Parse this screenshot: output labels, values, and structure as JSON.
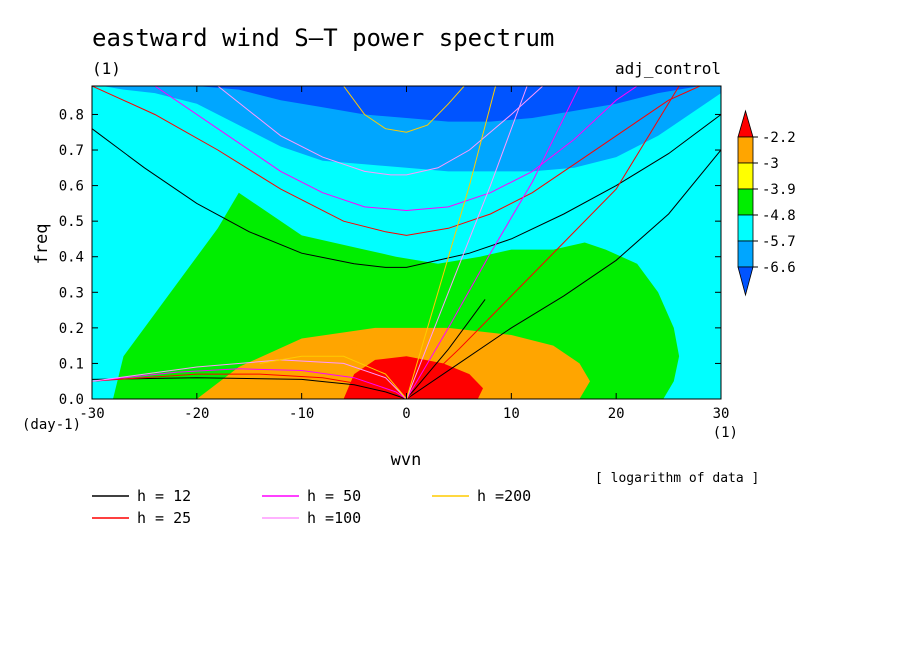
{
  "chart_data": {
    "type": "heatmap",
    "title": "eastward wind S–T power spectrum",
    "subtitle_left": "(1)",
    "subtitle_right": "adj_control",
    "xlabel": "wvn",
    "ylabel": "freq",
    "x_unit": "(1)",
    "y_unit": "(day-1)",
    "note": "[ logarithm of data ]",
    "xlim": [
      -30,
      30
    ],
    "ylim": [
      0,
      0.88
    ],
    "xticks": [
      -30,
      -20,
      -10,
      0,
      10,
      20,
      30
    ],
    "yticks": [
      0.0,
      0.1,
      0.2,
      0.3,
      0.4,
      0.5,
      0.6,
      0.7,
      0.8
    ],
    "ytick_labels": [
      "0.0",
      "0.1",
      "0.2",
      "0.3",
      "0.4",
      "0.5",
      "0.6",
      "0.7",
      "0.8"
    ],
    "grid": false,
    "colorbar": {
      "levels": [
        "-2.2",
        "-3",
        "-3.9",
        "-4.8",
        "-5.7",
        "-6.6"
      ],
      "colors": [
        "#fe0000",
        "#ffa500",
        "#ffff00",
        "#00ee00",
        "#00ffff",
        "#00a6ff",
        "#0054ff"
      ]
    },
    "fill_bands": [
      {
        "name": "> -3.9",
        "color": "#ffa500",
        "x": [
          -20.0,
          -16.0,
          -10.0,
          -3.0,
          4.0,
          10.0,
          14.0,
          16.5,
          17.5,
          16.5,
          12.0,
          0.0,
          -12.0,
          -20.0
        ],
        "y": [
          0.0,
          0.09,
          0.17,
          0.2,
          0.2,
          0.18,
          0.15,
          0.1,
          0.05,
          0.0,
          0.0,
          0.0,
          0.0,
          0.0
        ]
      },
      {
        "name": "> -3",
        "color": "#ffa500",
        "x": [
          -13.0,
          -9.0,
          -5.0,
          0.0,
          5.0,
          8.5,
          10.5,
          11.0,
          10.5,
          0.0,
          -13.0
        ],
        "y": [
          0.0,
          0.1,
          0.15,
          0.17,
          0.16,
          0.13,
          0.08,
          0.03,
          0.0,
          0.0,
          0.0
        ]
      },
      {
        "name": "> -2.2",
        "color": "#fe0000",
        "x": [
          -6.0,
          -5.0,
          -3.0,
          0.0,
          3.5,
          6.0,
          7.3,
          6.8,
          0.0,
          -6.0
        ],
        "y": [
          0.0,
          0.07,
          0.11,
          0.12,
          0.1,
          0.07,
          0.03,
          0.0,
          0.0,
          0.0
        ]
      },
      {
        "name": "> -4.8",
        "color": "#00ee00",
        "x": [
          -28.0,
          -27.0,
          -24.0,
          -21.0,
          -18.0,
          -16.0,
          -13.0,
          -10.0,
          -7.0,
          -4.0,
          -1.0,
          3.0,
          7.0,
          10.0,
          14.0,
          17.0,
          19.0,
          22.0,
          24.0,
          25.5,
          26.0,
          25.5,
          24.5,
          0.0,
          -28.0
        ],
        "y": [
          0.0,
          0.12,
          0.24,
          0.36,
          0.48,
          0.58,
          0.52,
          0.46,
          0.44,
          0.42,
          0.4,
          0.38,
          0.4,
          0.42,
          0.42,
          0.44,
          0.42,
          0.38,
          0.3,
          0.2,
          0.12,
          0.05,
          0.0,
          0.0,
          0.0
        ]
      },
      {
        "name": "> -6.6",
        "color": "#00a6ff",
        "x": [
          -30.0,
          -29.0,
          -27.0,
          -24.0,
          -20.0,
          -16.0,
          -12.0,
          -8.0,
          -4.0,
          0.0,
          4.0,
          8.0,
          12.0,
          16.0,
          20.0,
          24.0,
          27.0,
          29.0,
          30.0
        ],
        "y": [
          0.88,
          0.88,
          0.87,
          0.86,
          0.83,
          0.77,
          0.71,
          0.67,
          0.66,
          0.65,
          0.64,
          0.64,
          0.64,
          0.65,
          0.68,
          0.74,
          0.8,
          0.84,
          0.86
        ]
      },
      {
        "name": "> -5.7",
        "color": "#00ffff",
        "x": [
          -30.0,
          -27.0,
          -24.0,
          -20.0,
          -16.0,
          -12.0,
          -8.0,
          -4.0,
          0.0,
          4.0,
          8.0,
          12.0,
          16.0,
          20.0,
          24.0,
          27.0,
          29.0,
          30.0
        ],
        "y": [
          0.88,
          0.88,
          0.88,
          0.84,
          0.74,
          0.64,
          0.57,
          0.53,
          0.51,
          0.5,
          0.5,
          0.51,
          0.53,
          0.57,
          0.62,
          0.66,
          0.66,
          0.64
        ]
      }
    ],
    "series": [
      {
        "name": "h = 12",
        "color": "#000000",
        "curves": [
          {
            "x": [
              -30.0,
              -25.0,
              -20.0,
              -15.0,
              -10.0,
              -5.0,
              -2.0,
              0.0,
              3.0,
              6.0,
              10.0,
              15.0,
              20.0,
              25.0,
              30.0
            ],
            "y": [
              0.76,
              0.65,
              0.55,
              0.47,
              0.41,
              0.38,
              0.37,
              0.37,
              0.39,
              0.41,
              0.45,
              0.52,
              0.6,
              0.69,
              0.8
            ]
          },
          {
            "x": [
              0.0,
              5.0,
              10.0,
              15.0,
              20.0,
              25.0,
              30.0
            ],
            "y": [
              0.0,
              0.1,
              0.2,
              0.29,
              0.39,
              0.52,
              0.7
            ]
          },
          {
            "x": [
              0.0,
              2.0,
              4.0,
              6.0,
              7.5
            ],
            "y": [
              0.0,
              0.07,
              0.14,
              0.22,
              0.28
            ]
          },
          {
            "x": [
              -30.0,
              -20.0,
              -10.0,
              -5.0,
              -2.0,
              0.0
            ],
            "y": [
              0.055,
              0.06,
              0.055,
              0.04,
              0.02,
              0.0
            ]
          }
        ]
      },
      {
        "name": "h = 25",
        "color": "#fe0000",
        "curves": [
          {
            "x": [
              -30.0,
              -24.0,
              -18.0,
              -12.0,
              -6.0,
              -2.0,
              0.0,
              4.0,
              8.0,
              12.0,
              16.0,
              20.0,
              25.0,
              28.0
            ],
            "y": [
              0.88,
              0.8,
              0.7,
              0.59,
              0.5,
              0.47,
              0.46,
              0.48,
              0.52,
              0.58,
              0.66,
              0.74,
              0.84,
              0.88
            ]
          },
          {
            "x": [
              0.0,
              5.0,
              10.0,
              15.0,
              20.0,
              26.0
            ],
            "y": [
              0.0,
              0.14,
              0.29,
              0.44,
              0.59,
              0.88
            ]
          },
          {
            "x": [
              -30.0,
              -20.0,
              -14.0,
              -8.0,
              -4.0,
              -1.0,
              0.0
            ],
            "y": [
              0.05,
              0.07,
              0.07,
              0.06,
              0.04,
              0.015,
              0.0
            ]
          }
        ]
      },
      {
        "name": "h = 50",
        "color": "#ff00ff",
        "curves": [
          {
            "x": [
              -24.0,
              -18.0,
              -12.0,
              -8.0,
              -4.0,
              0.0,
              4.0,
              8.0,
              12.0,
              16.0,
              20.0,
              22.0
            ],
            "y": [
              0.88,
              0.76,
              0.64,
              0.58,
              0.54,
              0.53,
              0.54,
              0.58,
              0.64,
              0.73,
              0.84,
              0.88
            ]
          },
          {
            "x": [
              0.0,
              4.0,
              8.0,
              12.0,
              16.5
            ],
            "y": [
              0.0,
              0.2,
              0.41,
              0.61,
              0.88
            ]
          },
          {
            "x": [
              -30.0,
              -22.0,
              -16.0,
              -10.0,
              -5.0,
              -1.0,
              0.0
            ],
            "y": [
              0.05,
              0.075,
              0.085,
              0.08,
              0.06,
              0.02,
              0.0
            ]
          }
        ]
      },
      {
        "name": "h =100",
        "color": "#ff99ff",
        "curves": [
          {
            "x": [
              -18.0,
              -12.0,
              -8.0,
              -4.0,
              -1.5,
              0.0,
              3.0,
              6.0,
              10.0,
              13.0
            ],
            "y": [
              0.88,
              0.74,
              0.68,
              0.64,
              0.63,
              0.63,
              0.65,
              0.7,
              0.8,
              0.88
            ]
          },
          {
            "x": [
              0.0,
              4.0,
              8.0,
              11.5
            ],
            "y": [
              0.0,
              0.3,
              0.6,
              0.88
            ]
          },
          {
            "x": [
              -30.0,
              -20.0,
              -12.0,
              -6.0,
              -2.0,
              0.0
            ],
            "y": [
              0.05,
              0.09,
              0.11,
              0.1,
              0.06,
              0.0
            ]
          }
        ]
      },
      {
        "name": "h =200",
        "color": "#ffcc00",
        "curves": [
          {
            "x": [
              -6.0,
              -4.0,
              -2.0,
              0.0,
              2.0,
              4.0,
              5.5
            ],
            "y": [
              0.88,
              0.8,
              0.76,
              0.75,
              0.77,
              0.83,
              0.88
            ]
          },
          {
            "x": [
              0.0,
              3.0,
              6.0,
              8.5
            ],
            "y": [
              0.0,
              0.3,
              0.6,
              0.88
            ]
          },
          {
            "x": [
              -14.0,
              -10.0,
              -6.0,
              -2.0,
              0.0
            ],
            "y": [
              0.1,
              0.12,
              0.12,
              0.07,
              0.0
            ]
          }
        ]
      }
    ]
  }
}
